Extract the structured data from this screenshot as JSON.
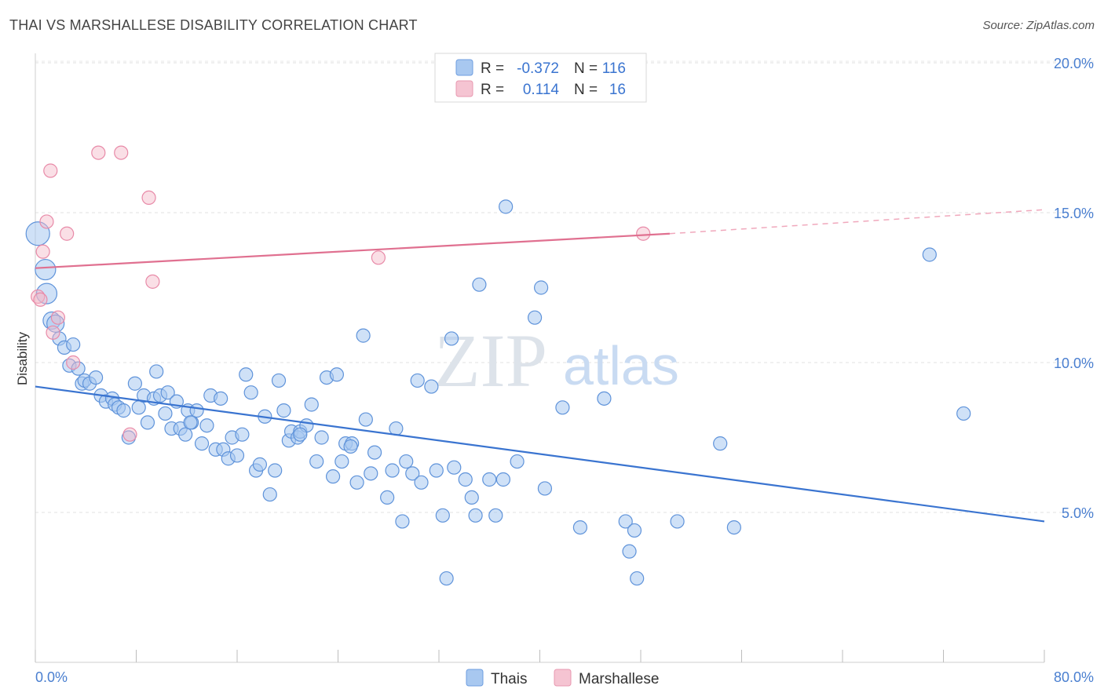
{
  "title": "THAI VS MARSHALLESE DISABILITY CORRELATION CHART",
  "source": "Source: ZipAtlas.com",
  "watermark": {
    "zip": "ZIP",
    "atlas": "atlas"
  },
  "legend_top": {
    "rows": [
      {
        "r_label": "R =",
        "r_value": "-0.372",
        "n_label": "N =",
        "n_value": "116",
        "color": "#a8c8f0"
      },
      {
        "r_label": "R =",
        "r_value": "0.114",
        "n_label": "N =",
        "n_value": "16",
        "color": "#f5b8c8"
      }
    ]
  },
  "legend_bottom": {
    "items": [
      "Thais",
      "Marshallese"
    ]
  },
  "colors": {
    "blue": "#3a74d0",
    "blue_fill": "#a8c8f0",
    "pink": "#e07090",
    "pink_fill": "#f5b8c8",
    "tick": "#4a7fd0"
  },
  "chart_data": {
    "type": "scatter",
    "xlabel": "",
    "ylabel": "Disability",
    "xlim": [
      0,
      80
    ],
    "ylim": [
      0,
      20.5
    ],
    "x_tick_labels": [
      "0.0%",
      "80.0%"
    ],
    "y_ticks": [
      5,
      10,
      15,
      20
    ],
    "y_tick_labels": [
      "5.0%",
      "10.0%",
      "15.0%",
      "20.0%"
    ],
    "grid": true,
    "series": [
      {
        "name": "Thais",
        "points": [
          [
            0.2,
            14.3
          ],
          [
            0.8,
            13.1
          ],
          [
            0.9,
            12.3
          ],
          [
            1.3,
            11.4
          ],
          [
            1.6,
            11.3
          ],
          [
            1.9,
            10.8
          ],
          [
            2.3,
            10.5
          ],
          [
            3.0,
            10.6
          ],
          [
            2.7,
            9.9
          ],
          [
            3.4,
            9.8
          ],
          [
            3.7,
            9.3
          ],
          [
            3.9,
            9.4
          ],
          [
            4.3,
            9.3
          ],
          [
            4.8,
            9.5
          ],
          [
            5.2,
            8.9
          ],
          [
            5.6,
            8.7
          ],
          [
            6.1,
            8.8
          ],
          [
            6.3,
            8.6
          ],
          [
            6.6,
            8.5
          ],
          [
            7.0,
            8.4
          ],
          [
            7.4,
            7.5
          ],
          [
            7.9,
            9.3
          ],
          [
            8.2,
            8.5
          ],
          [
            8.6,
            8.9
          ],
          [
            8.9,
            8.0
          ],
          [
            9.4,
            8.8
          ],
          [
            9.6,
            9.7
          ],
          [
            9.9,
            8.9
          ],
          [
            10.3,
            8.3
          ],
          [
            10.5,
            9.0
          ],
          [
            10.8,
            7.8
          ],
          [
            11.2,
            8.7
          ],
          [
            11.5,
            7.8
          ],
          [
            11.9,
            7.6
          ],
          [
            12.1,
            8.4
          ],
          [
            12.4,
            8.0
          ],
          [
            12.8,
            8.4
          ],
          [
            13.2,
            7.3
          ],
          [
            13.6,
            7.9
          ],
          [
            13.9,
            8.9
          ],
          [
            14.3,
            7.1
          ],
          [
            14.7,
            8.8
          ],
          [
            14.9,
            7.1
          ],
          [
            15.3,
            6.8
          ],
          [
            15.6,
            7.5
          ],
          [
            16.0,
            6.9
          ],
          [
            16.4,
            7.6
          ],
          [
            16.7,
            9.6
          ],
          [
            17.1,
            9.0
          ],
          [
            17.5,
            6.4
          ],
          [
            17.8,
            6.6
          ],
          [
            18.2,
            8.2
          ],
          [
            18.6,
            5.6
          ],
          [
            19.0,
            6.4
          ],
          [
            19.3,
            9.4
          ],
          [
            19.7,
            8.4
          ],
          [
            20.1,
            7.4
          ],
          [
            20.3,
            7.7
          ],
          [
            20.8,
            7.5
          ],
          [
            21.0,
            7.7
          ],
          [
            21.5,
            7.9
          ],
          [
            21.9,
            8.6
          ],
          [
            22.3,
            6.7
          ],
          [
            22.7,
            7.5
          ],
          [
            23.1,
            9.5
          ],
          [
            23.6,
            6.2
          ],
          [
            23.9,
            9.6
          ],
          [
            24.3,
            6.7
          ],
          [
            24.6,
            7.3
          ],
          [
            25.1,
            7.3
          ],
          [
            25.5,
            6.0
          ],
          [
            26.0,
            10.9
          ],
          [
            26.2,
            8.1
          ],
          [
            26.6,
            6.3
          ],
          [
            26.9,
            7.0
          ],
          [
            27.9,
            5.5
          ],
          [
            28.3,
            6.4
          ],
          [
            28.6,
            7.8
          ],
          [
            29.1,
            4.7
          ],
          [
            29.4,
            6.7
          ],
          [
            29.9,
            6.3
          ],
          [
            30.3,
            9.4
          ],
          [
            30.6,
            6.0
          ],
          [
            31.4,
            9.2
          ],
          [
            31.8,
            6.4
          ],
          [
            32.3,
            4.9
          ],
          [
            32.6,
            2.8
          ],
          [
            33.0,
            10.8
          ],
          [
            33.2,
            6.5
          ],
          [
            34.1,
            6.1
          ],
          [
            34.6,
            5.5
          ],
          [
            34.9,
            4.9
          ],
          [
            35.2,
            12.6
          ],
          [
            36.0,
            6.1
          ],
          [
            36.5,
            4.9
          ],
          [
            37.1,
            6.1
          ],
          [
            37.3,
            15.2
          ],
          [
            38.2,
            6.7
          ],
          [
            39.6,
            11.5
          ],
          [
            40.1,
            12.5
          ],
          [
            40.4,
            5.8
          ],
          [
            41.8,
            8.5
          ],
          [
            43.2,
            4.5
          ],
          [
            45.1,
            8.8
          ],
          [
            46.8,
            4.7
          ],
          [
            47.1,
            3.7
          ],
          [
            47.5,
            4.4
          ],
          [
            47.7,
            2.8
          ],
          [
            50.9,
            4.7
          ],
          [
            54.3,
            7.3
          ],
          [
            55.4,
            4.5
          ],
          [
            70.9,
            13.6
          ],
          [
            73.6,
            8.3
          ],
          [
            12.3,
            8.0
          ],
          [
            21.0,
            7.6
          ],
          [
            25.0,
            7.2
          ]
        ],
        "trend": {
          "x_start": 0,
          "y_start": 9.2,
          "x_end": 80,
          "y_end": 4.7
        }
      },
      {
        "name": "Marshallese",
        "points": [
          [
            0.2,
            12.2
          ],
          [
            0.6,
            13.7
          ],
          [
            0.9,
            14.7
          ],
          [
            1.2,
            16.4
          ],
          [
            1.4,
            11.0
          ],
          [
            1.8,
            11.5
          ],
          [
            2.5,
            14.3
          ],
          [
            3.0,
            10.0
          ],
          [
            5.0,
            17.0
          ],
          [
            6.8,
            17.0
          ],
          [
            7.5,
            7.6
          ],
          [
            9.0,
            15.5
          ],
          [
            9.3,
            12.7
          ],
          [
            27.2,
            13.5
          ],
          [
            48.2,
            14.3
          ],
          [
            0.4,
            12.1
          ]
        ],
        "trend": {
          "x_start": 0,
          "y_start": 13.15,
          "x_end": 50.3,
          "y_end": 14.3,
          "dash_x_end": 80,
          "dash_y_end": 15.1
        }
      }
    ]
  }
}
